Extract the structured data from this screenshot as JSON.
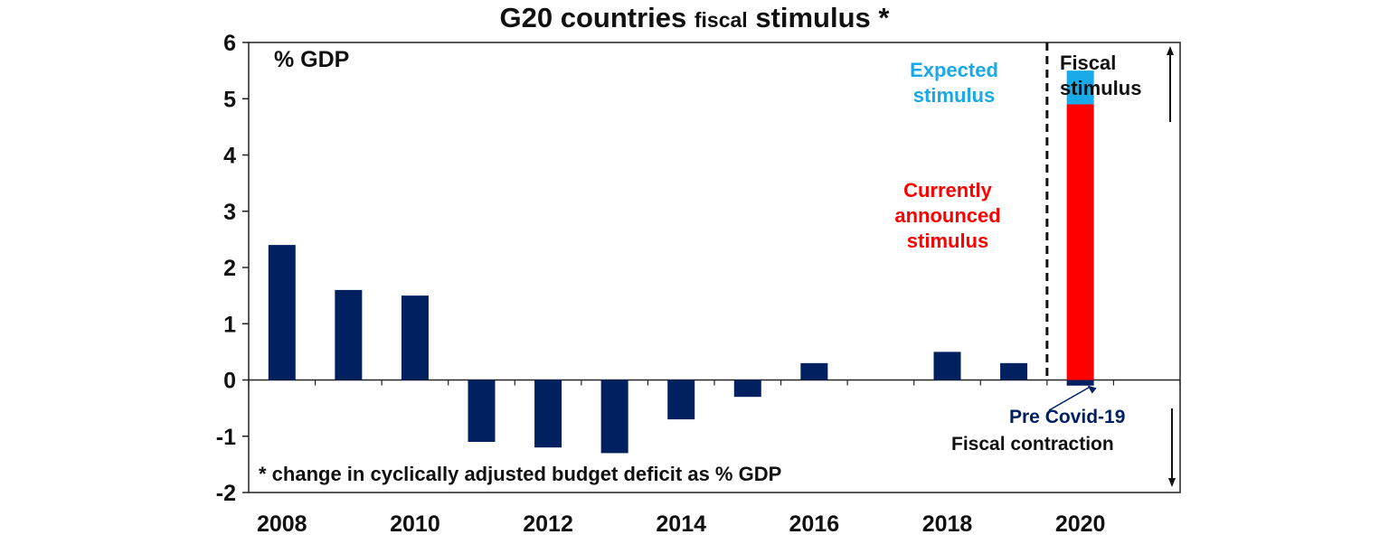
{
  "chart_data": {
    "type": "bar",
    "title": {
      "main_before": "G20 countries ",
      "main_small": "fiscal",
      "main_after": " stimulus *"
    },
    "ylabel": "% GDP",
    "ylim": [
      -2,
      6
    ],
    "yticks": [
      "-2",
      "-1",
      "0",
      "1",
      "2",
      "3",
      "4",
      "5",
      "6"
    ],
    "categories": [
      "2008",
      "2009",
      "2010",
      "2011",
      "2012",
      "2013",
      "2014",
      "2015",
      "2016",
      "2017",
      "2018",
      "2019",
      "2020",
      "2021"
    ],
    "xtick_labels": [
      "2008",
      "2010",
      "2012",
      "2014",
      "2016",
      "2018",
      "2020"
    ],
    "series": [
      {
        "name": "Fiscal stimulus (change in cyclically adjusted budget deficit)",
        "color": "#002060",
        "values": [
          2.4,
          1.6,
          1.5,
          -1.1,
          -1.2,
          -1.3,
          -0.7,
          -0.3,
          0.3,
          null,
          0.5,
          0.3,
          -0.1,
          null
        ]
      },
      {
        "name": "Currently announced stimulus",
        "color": "#ff0000",
        "values": [
          null,
          null,
          null,
          null,
          null,
          null,
          null,
          null,
          null,
          null,
          null,
          null,
          4.9,
          null
        ]
      },
      {
        "name": "Expected stimulus",
        "color": "#19a9e8",
        "values": [
          null,
          null,
          null,
          null,
          null,
          null,
          null,
          null,
          null,
          null,
          null,
          null,
          0.6,
          null
        ]
      }
    ],
    "divider_after_category": "2019",
    "annotations": {
      "expected": "Expected stimulus",
      "announced_line1": "Currently",
      "announced_line2": "announced",
      "announced_line3": "stimulus",
      "pre_covid": "Pre Covid-19",
      "fiscal_stimulus_line1": "Fiscal",
      "fiscal_stimulus_line2": "stimulus",
      "fiscal_contraction": "Fiscal contraction",
      "footnote": "* change in cyclically adjusted budget deficit as % GDP"
    },
    "colors": {
      "expected_text": "#19a9e8",
      "announced_text": "#ff0000",
      "precovid_text": "#002060"
    }
  }
}
